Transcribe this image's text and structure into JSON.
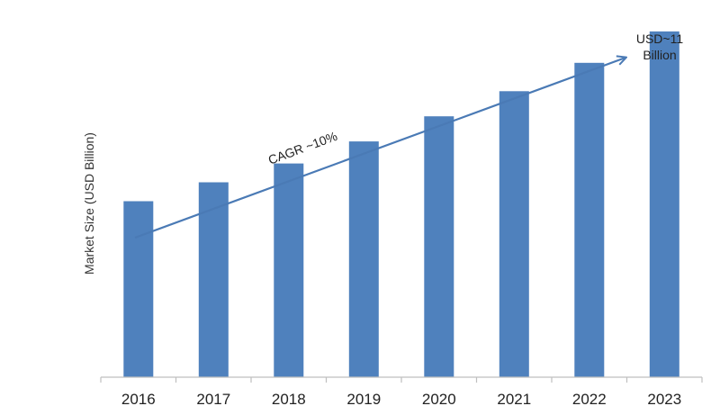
{
  "chart_data": {
    "type": "bar",
    "categories": [
      "2016",
      "2017",
      "2018",
      "2019",
      "2020",
      "2021",
      "2022",
      "2023"
    ],
    "values": [
      5.6,
      6.2,
      6.8,
      7.5,
      8.3,
      9.1,
      10.0,
      11.0
    ],
    "ylabel": "Market Size (USD Billion)",
    "xlabel": "",
    "title": "",
    "ylim": [
      0,
      12
    ],
    "grid": false,
    "legend": "none",
    "bar_color": "#4f81bd",
    "arrow_color": "#4a7ab5",
    "annotations": {
      "cagr": "CAGR ~10%",
      "end_value_line1": "USD~11",
      "end_value_line2": "Billion"
    }
  }
}
